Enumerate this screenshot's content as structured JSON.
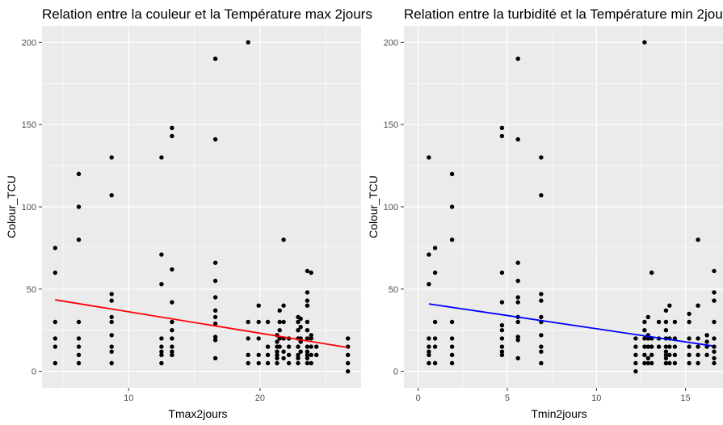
{
  "chart_data": [
    {
      "type": "scatter",
      "title": "Relation entre la couleur et la Température max 2jours",
      "xlabel": "Tmax2jours",
      "ylabel": "Colour_TCU",
      "xlim": [
        3.4,
        27.7
      ],
      "ylim": [
        -10,
        210
      ],
      "xticks": [
        10,
        20
      ],
      "yticks": [
        0,
        50,
        100,
        150,
        200
      ],
      "grid": true,
      "background": "#ebebeb",
      "point_color": "#000000",
      "trend_color": "#ff0000",
      "trend_line": [
        [
          4.4,
          43.5
        ],
        [
          26.7,
          14.5
        ]
      ],
      "points": [
        [
          4.4,
          75
        ],
        [
          4.4,
          60
        ],
        [
          4.4,
          30
        ],
        [
          4.4,
          20
        ],
        [
          4.4,
          15
        ],
        [
          4.4,
          5
        ],
        [
          6.2,
          120
        ],
        [
          6.2,
          100
        ],
        [
          6.2,
          80
        ],
        [
          6.2,
          30
        ],
        [
          6.2,
          20
        ],
        [
          6.2,
          15
        ],
        [
          6.2,
          10
        ],
        [
          6.2,
          5
        ],
        [
          8.7,
          130
        ],
        [
          8.7,
          107
        ],
        [
          8.7,
          47
        ],
        [
          8.7,
          43
        ],
        [
          8.7,
          33
        ],
        [
          8.7,
          30
        ],
        [
          8.7,
          22
        ],
        [
          8.7,
          15
        ],
        [
          8.7,
          12
        ],
        [
          8.7,
          5
        ],
        [
          12.5,
          130
        ],
        [
          12.5,
          71
        ],
        [
          12.5,
          53
        ],
        [
          12.5,
          20
        ],
        [
          12.5,
          15
        ],
        [
          12.5,
          12
        ],
        [
          12.5,
          10
        ],
        [
          12.5,
          5
        ],
        [
          13.3,
          148
        ],
        [
          13.3,
          143
        ],
        [
          13.3,
          62
        ],
        [
          13.3,
          42
        ],
        [
          13.3,
          30
        ],
        [
          13.3,
          25
        ],
        [
          13.3,
          20
        ],
        [
          13.3,
          15
        ],
        [
          13.3,
          12
        ],
        [
          13.3,
          10
        ],
        [
          16.6,
          190
        ],
        [
          16.6,
          141
        ],
        [
          16.6,
          66
        ],
        [
          16.6,
          55
        ],
        [
          16.6,
          45
        ],
        [
          16.6,
          37
        ],
        [
          16.6,
          33
        ],
        [
          16.6,
          29
        ],
        [
          16.6,
          21
        ],
        [
          16.6,
          19
        ],
        [
          16.6,
          8
        ],
        [
          19.1,
          200
        ],
        [
          19.1,
          30
        ],
        [
          19.1,
          20
        ],
        [
          19.1,
          10
        ],
        [
          19.1,
          5
        ],
        [
          19.9,
          40
        ],
        [
          19.9,
          30
        ],
        [
          19.9,
          20
        ],
        [
          19.9,
          10
        ],
        [
          19.9,
          5
        ],
        [
          20.6,
          30
        ],
        [
          20.6,
          15
        ],
        [
          20.6,
          10
        ],
        [
          20.6,
          5
        ],
        [
          21.3,
          22
        ],
        [
          21.3,
          18
        ],
        [
          21.3,
          15
        ],
        [
          21.3,
          12
        ],
        [
          21.3,
          10
        ],
        [
          21.3,
          8
        ],
        [
          21.3,
          5
        ],
        [
          21.5,
          37
        ],
        [
          21.5,
          30
        ],
        [
          21.5,
          25
        ],
        [
          21.5,
          20
        ],
        [
          21.5,
          15
        ],
        [
          21.8,
          80
        ],
        [
          21.8,
          40
        ],
        [
          21.8,
          30
        ],
        [
          21.8,
          20
        ],
        [
          21.8,
          12
        ],
        [
          21.8,
          8
        ],
        [
          22.2,
          20
        ],
        [
          22.2,
          15
        ],
        [
          22.2,
          10
        ],
        [
          22.2,
          5
        ],
        [
          22.9,
          33
        ],
        [
          22.9,
          30
        ],
        [
          22.9,
          25
        ],
        [
          22.9,
          20
        ],
        [
          22.9,
          15
        ],
        [
          22.9,
          10
        ],
        [
          22.9,
          8
        ],
        [
          22.9,
          5
        ],
        [
          23.1,
          32
        ],
        [
          23.1,
          27
        ],
        [
          23.1,
          20
        ],
        [
          23.1,
          18
        ],
        [
          23.1,
          12
        ],
        [
          23.6,
          61
        ],
        [
          23.6,
          48
        ],
        [
          23.6,
          43
        ],
        [
          23.6,
          40
        ],
        [
          23.6,
          30
        ],
        [
          23.6,
          25
        ],
        [
          23.6,
          20
        ],
        [
          23.6,
          15
        ],
        [
          23.6,
          12
        ],
        [
          23.6,
          10
        ],
        [
          23.6,
          8
        ],
        [
          23.6,
          5
        ],
        [
          23.9,
          60
        ],
        [
          23.9,
          22
        ],
        [
          23.9,
          20
        ],
        [
          23.9,
          15
        ],
        [
          23.9,
          10
        ],
        [
          23.9,
          5
        ],
        [
          24.3,
          15
        ],
        [
          24.3,
          10
        ],
        [
          26.7,
          20
        ],
        [
          26.7,
          15
        ],
        [
          26.7,
          10
        ],
        [
          26.7,
          5
        ],
        [
          26.7,
          0
        ]
      ]
    },
    {
      "type": "scatter",
      "title": "Relation entre la turbidité et la Température min 2jours",
      "xlabel": "Tmin2jours",
      "ylabel": "Colour_TCU",
      "xlim": [
        -0.8,
        17.1
      ],
      "ylim": [
        -10,
        210
      ],
      "xticks": [
        0,
        5,
        10,
        15
      ],
      "yticks": [
        0,
        50,
        100,
        150,
        200
      ],
      "grid": true,
      "background": "#ebebeb",
      "point_color": "#000000",
      "trend_color": "#0000ff",
      "trend_line": [
        [
          0.6,
          41
        ],
        [
          16.5,
          15.5
        ]
      ],
      "points": [
        [
          0.6,
          130
        ],
        [
          0.6,
          71
        ],
        [
          0.6,
          53
        ],
        [
          0.6,
          20
        ],
        [
          0.6,
          15
        ],
        [
          0.6,
          12
        ],
        [
          0.6,
          10
        ],
        [
          0.6,
          5
        ],
        [
          0.95,
          75
        ],
        [
          0.95,
          60
        ],
        [
          0.95,
          30
        ],
        [
          0.95,
          20
        ],
        [
          0.95,
          15
        ],
        [
          0.95,
          5
        ],
        [
          1.9,
          120
        ],
        [
          1.9,
          100
        ],
        [
          1.9,
          80
        ],
        [
          1.9,
          30
        ],
        [
          1.9,
          20
        ],
        [
          1.9,
          15
        ],
        [
          1.9,
          10
        ],
        [
          1.9,
          5
        ],
        [
          4.7,
          148
        ],
        [
          4.7,
          143
        ],
        [
          4.7,
          60
        ],
        [
          4.7,
          42
        ],
        [
          4.7,
          28
        ],
        [
          4.7,
          25
        ],
        [
          4.7,
          20
        ],
        [
          4.7,
          15
        ],
        [
          4.7,
          12
        ],
        [
          4.7,
          10
        ],
        [
          5.6,
          190
        ],
        [
          5.6,
          141
        ],
        [
          5.6,
          66
        ],
        [
          5.6,
          55
        ],
        [
          5.6,
          45
        ],
        [
          5.6,
          42
        ],
        [
          5.6,
          33
        ],
        [
          5.6,
          30
        ],
        [
          5.6,
          21
        ],
        [
          5.6,
          19
        ],
        [
          5.6,
          8
        ],
        [
          6.9,
          130
        ],
        [
          6.9,
          107
        ],
        [
          6.9,
          47
        ],
        [
          6.9,
          43
        ],
        [
          6.9,
          33
        ],
        [
          6.9,
          30
        ],
        [
          6.9,
          22
        ],
        [
          6.9,
          15
        ],
        [
          6.9,
          12
        ],
        [
          6.9,
          5
        ],
        [
          12.2,
          20
        ],
        [
          12.2,
          15
        ],
        [
          12.2,
          10
        ],
        [
          12.2,
          5
        ],
        [
          12.2,
          0
        ],
        [
          12.7,
          200
        ],
        [
          12.7,
          30
        ],
        [
          12.7,
          25
        ],
        [
          12.7,
          20
        ],
        [
          12.7,
          15
        ],
        [
          12.7,
          10
        ],
        [
          12.7,
          5
        ],
        [
          12.9,
          33
        ],
        [
          12.9,
          22
        ],
        [
          12.9,
          20
        ],
        [
          12.9,
          15
        ],
        [
          12.9,
          8
        ],
        [
          12.9,
          5
        ],
        [
          13.1,
          60
        ],
        [
          13.1,
          20
        ],
        [
          13.1,
          15
        ],
        [
          13.1,
          10
        ],
        [
          13.1,
          5
        ],
        [
          13.5,
          30
        ],
        [
          13.5,
          20
        ],
        [
          13.5,
          15
        ],
        [
          13.9,
          37
        ],
        [
          13.9,
          30
        ],
        [
          13.9,
          25
        ],
        [
          13.9,
          20
        ],
        [
          13.9,
          15
        ],
        [
          13.9,
          12
        ],
        [
          13.9,
          10
        ],
        [
          13.9,
          8
        ],
        [
          13.9,
          5
        ],
        [
          14.1,
          40
        ],
        [
          14.1,
          20
        ],
        [
          14.1,
          15
        ],
        [
          14.1,
          10
        ],
        [
          14.1,
          5
        ],
        [
          14.4,
          30
        ],
        [
          14.4,
          20
        ],
        [
          14.4,
          15
        ],
        [
          14.4,
          10
        ],
        [
          14.4,
          5
        ],
        [
          15.2,
          35
        ],
        [
          15.2,
          30
        ],
        [
          15.2,
          20
        ],
        [
          15.2,
          15
        ],
        [
          15.2,
          10
        ],
        [
          15.2,
          5
        ],
        [
          15.7,
          80
        ],
        [
          15.7,
          40
        ],
        [
          15.7,
          20
        ],
        [
          15.7,
          15
        ],
        [
          15.7,
          10
        ],
        [
          15.7,
          5
        ],
        [
          16.2,
          22
        ],
        [
          16.2,
          18
        ],
        [
          16.2,
          15
        ],
        [
          16.2,
          10
        ],
        [
          16.6,
          61
        ],
        [
          16.6,
          48
        ],
        [
          16.6,
          43
        ],
        [
          16.6,
          30
        ],
        [
          16.6,
          20
        ],
        [
          16.6,
          15
        ],
        [
          16.6,
          12
        ],
        [
          16.6,
          8
        ],
        [
          16.6,
          5
        ]
      ]
    }
  ]
}
